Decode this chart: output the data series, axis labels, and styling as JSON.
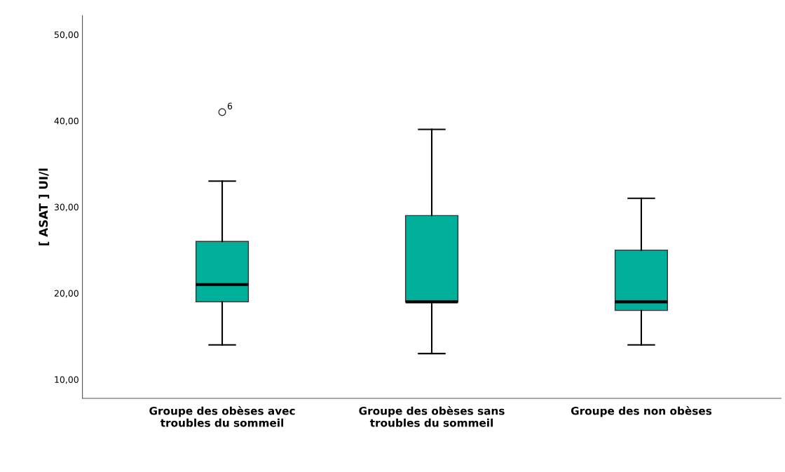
{
  "chart_data": {
    "type": "box",
    "ylabel": "[ ASAT ] UI/l",
    "categories": [
      "Groupe des obèses avec\ntroubles du sommeil",
      "Groupe des obèses sans\ntroubles du sommeil",
      "Groupe des non obèses"
    ],
    "boxes": [
      {
        "low": 14,
        "q1": 19,
        "median": 21,
        "q3": 26,
        "high": 33,
        "outliers": [
          41
        ]
      },
      {
        "low": 13,
        "q1": 19,
        "median": 19,
        "q3": 29,
        "high": 39
      },
      {
        "low": 14,
        "q1": 18,
        "median": 19,
        "q3": 25,
        "high": 31
      }
    ],
    "color": "#00b09a",
    "ylim": [
      7.8,
      52.2
    ],
    "yticks": [
      {
        "value": 10,
        "label": "10,00"
      },
      {
        "value": 20,
        "label": "20,00"
      },
      {
        "value": 30,
        "label": "30,00"
      },
      {
        "value": 40,
        "label": "40,00"
      },
      {
        "value": 50,
        "label": "50,00"
      }
    ],
    "annotations": [
      "6"
    ],
    "grid": false,
    "legend": false
  }
}
